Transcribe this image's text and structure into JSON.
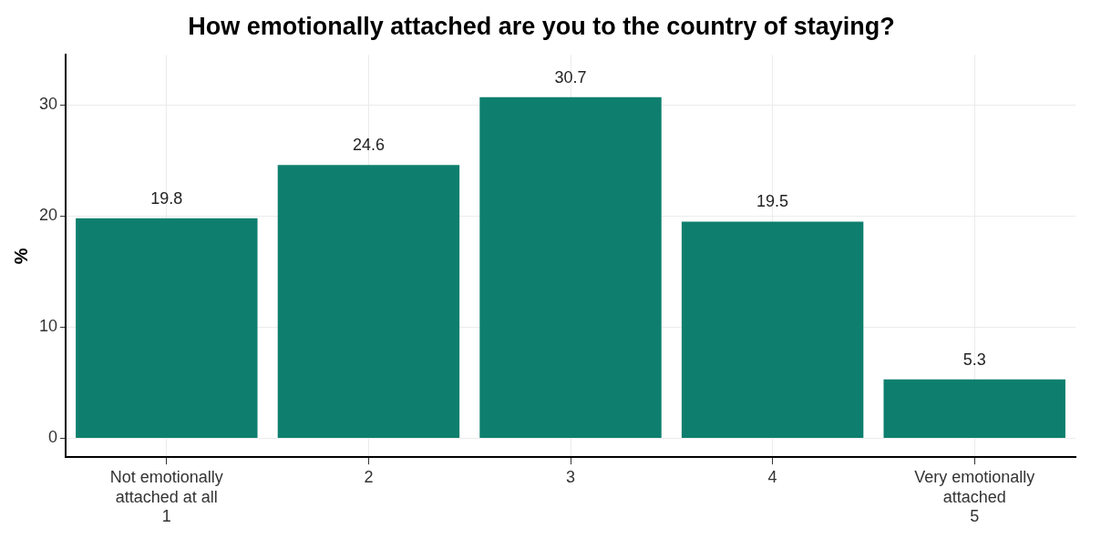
{
  "chart_data": {
    "type": "bar",
    "title": "How emotionally attached are you to the country of staying?",
    "ylabel": "%",
    "categories": [
      "Not emotionally\nattached at all\n1",
      "2",
      "3",
      "4",
      "Very emotionally\nattached\n5"
    ],
    "values": [
      19.8,
      24.6,
      30.7,
      19.5,
      5.3
    ],
    "color": "#0e7f6e",
    "ylim": [
      -1.7,
      34.5
    ],
    "yticks": [
      0,
      10,
      20,
      30
    ],
    "grid": true,
    "data_labels": true,
    "legend": false
  }
}
